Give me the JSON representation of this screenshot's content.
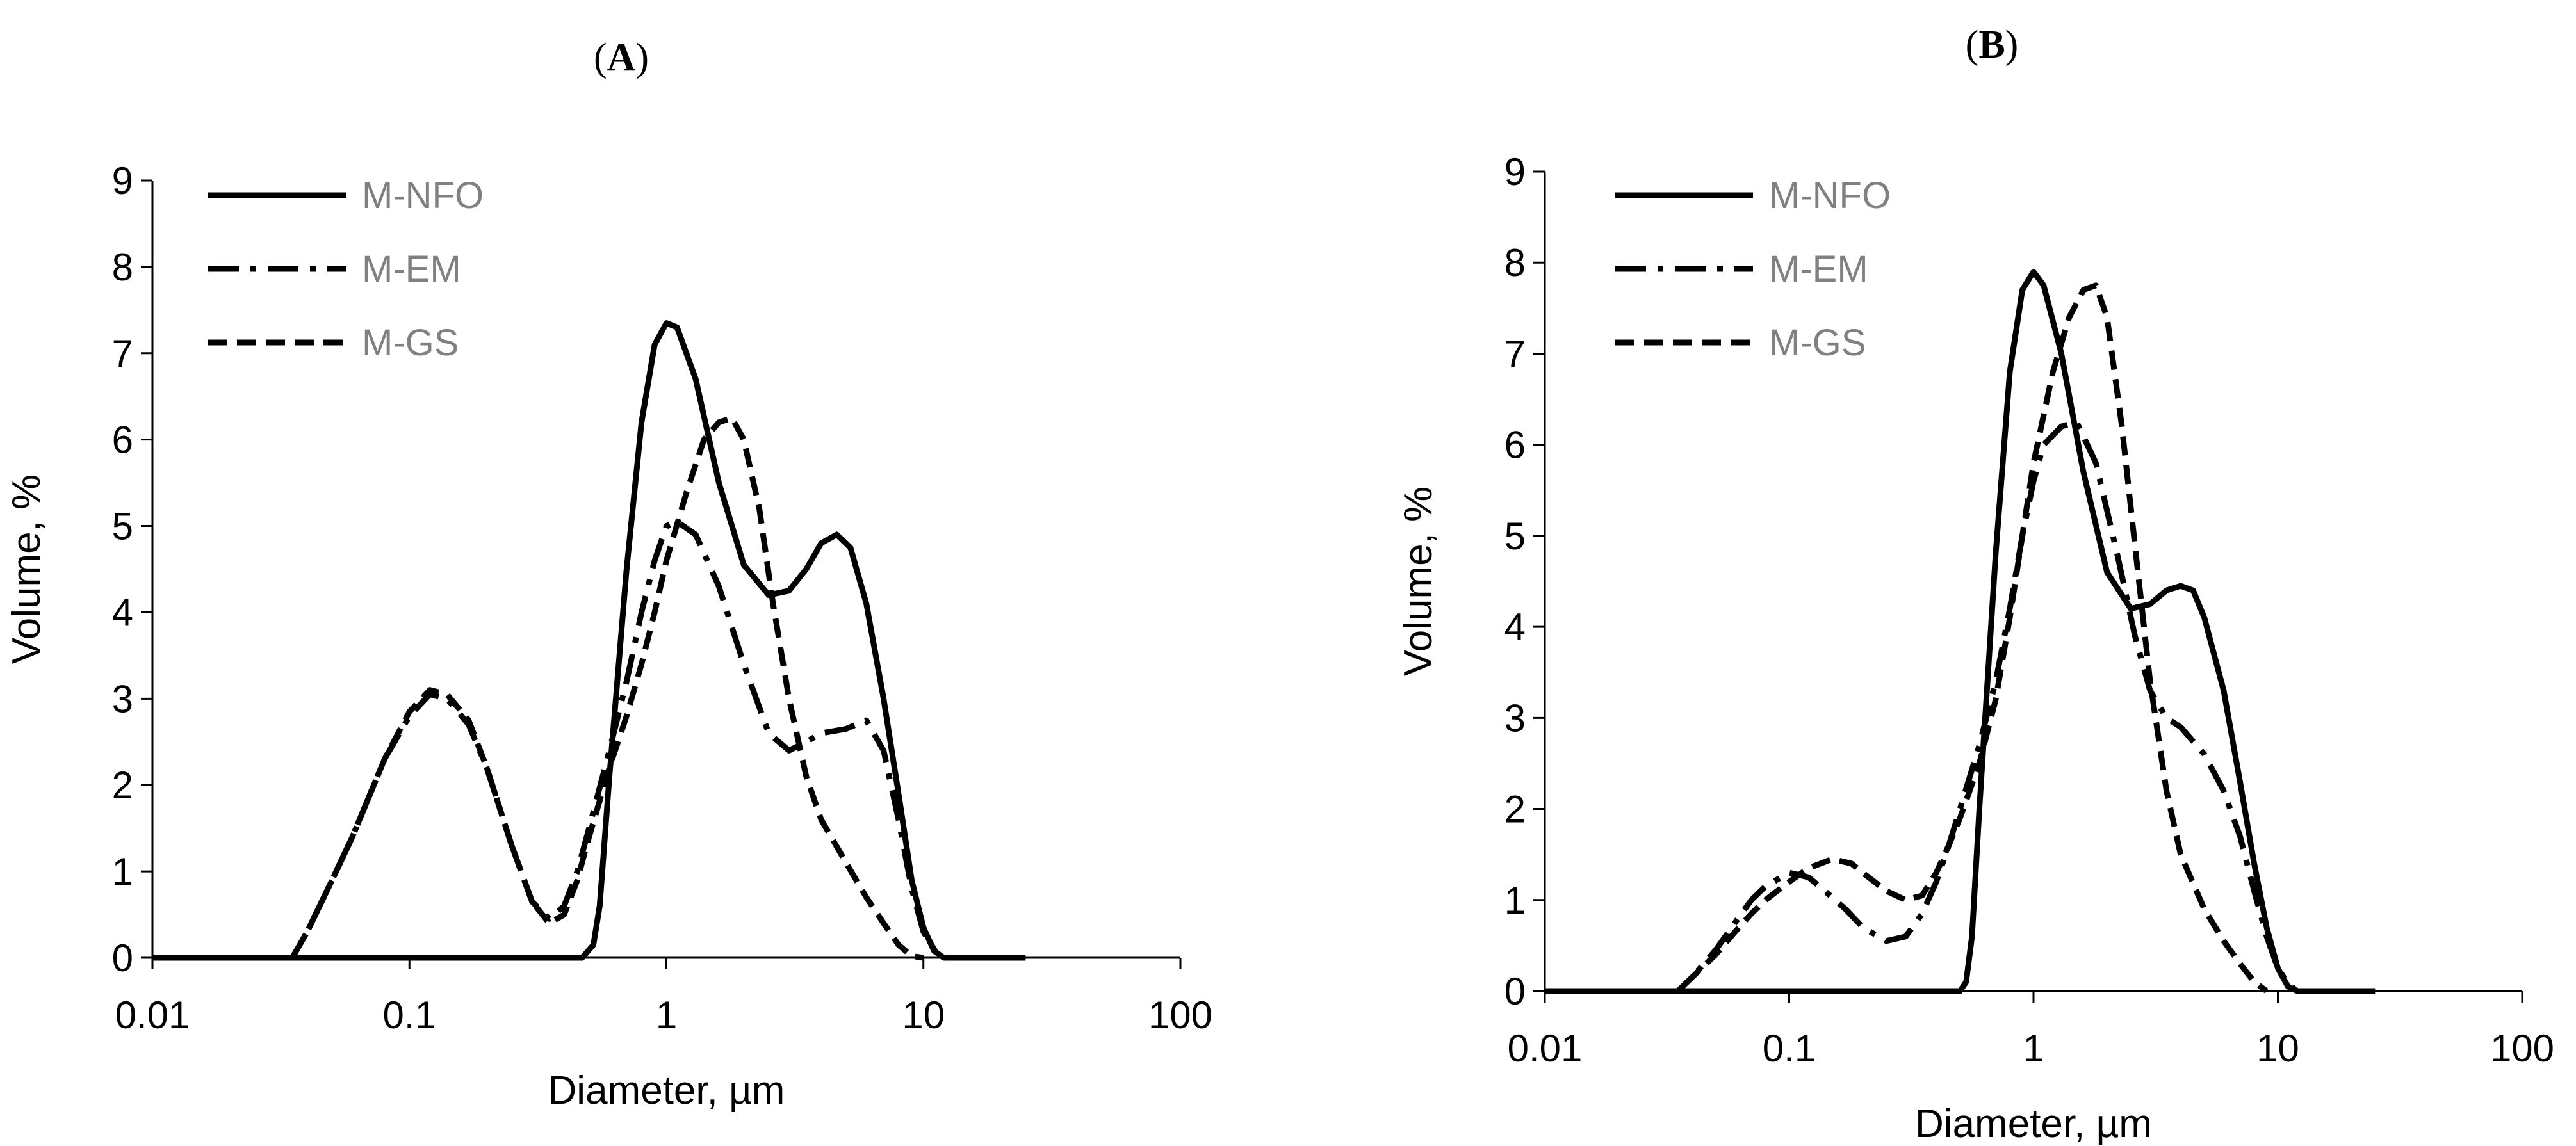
{
  "chart_data": [
    {
      "type": "line",
      "panel": "A",
      "title": "(A)",
      "xlabel": "Diameter, µm",
      "ylabel": "Volume, %",
      "xscale": "log",
      "xlim": [
        0.01,
        100
      ],
      "ylim": [
        0,
        9
      ],
      "xticks": [
        0.01,
        0.1,
        1,
        10,
        100
      ],
      "xtick_labels": [
        "0.01",
        "0.1",
        "1",
        "10",
        "100"
      ],
      "yticks": [
        0,
        1,
        2,
        3,
        4,
        5,
        6,
        7,
        8,
        9
      ],
      "ytick_labels": [
        "0",
        "1",
        "2",
        "3",
        "4",
        "5",
        "6",
        "7",
        "8",
        "9"
      ],
      "legend_position": "top-left",
      "series": [
        {
          "name": "M-NFO",
          "style": "solid",
          "x": [
            0.01,
            0.4,
            0.47,
            0.52,
            0.55,
            0.6,
            0.7,
            0.8,
            0.9,
            1.0,
            1.1,
            1.3,
            1.6,
            2.0,
            2.5,
            3.0,
            3.5,
            4.0,
            4.6,
            5.2,
            6.0,
            7.0,
            8.0,
            9.0,
            10.0,
            11.0,
            12.0,
            13.0,
            25.0
          ],
          "y": [
            0,
            0,
            0.0,
            0.15,
            0.6,
            2.1,
            4.5,
            6.2,
            7.1,
            7.35,
            7.3,
            6.7,
            5.5,
            4.55,
            4.2,
            4.25,
            4.5,
            4.8,
            4.9,
            4.75,
            4.1,
            3.0,
            1.9,
            0.9,
            0.35,
            0.08,
            0.0,
            0.0,
            0.0
          ]
        },
        {
          "name": "M-EM",
          "style": "dash-dot",
          "x": [
            0.01,
            0.035,
            0.04,
            0.05,
            0.06,
            0.08,
            0.1,
            0.12,
            0.14,
            0.17,
            0.2,
            0.25,
            0.3,
            0.35,
            0.4,
            0.45,
            0.5,
            0.6,
            0.7,
            0.8,
            0.9,
            1.0,
            1.1,
            1.3,
            1.6,
            2.0,
            2.5,
            3.0,
            3.5,
            4.0,
            5.0,
            6.0,
            7.0,
            8.0,
            9.0,
            10.0,
            11.0,
            12.0
          ],
          "y": [
            0,
            0,
            0.3,
            0.9,
            1.4,
            2.3,
            2.8,
            3.05,
            3.0,
            2.7,
            2.2,
            1.3,
            0.65,
            0.45,
            0.6,
            1.0,
            1.5,
            2.4,
            3.2,
            4.0,
            4.6,
            5.0,
            5.05,
            4.9,
            4.3,
            3.4,
            2.6,
            2.4,
            2.5,
            2.6,
            2.65,
            2.75,
            2.4,
            1.6,
            0.8,
            0.3,
            0.1,
            0.0
          ]
        },
        {
          "name": "M-GS",
          "style": "dashed",
          "x": [
            0.01,
            0.035,
            0.04,
            0.05,
            0.06,
            0.08,
            0.1,
            0.12,
            0.14,
            0.17,
            0.2,
            0.25,
            0.3,
            0.35,
            0.4,
            0.45,
            0.5,
            0.6,
            0.7,
            0.8,
            0.9,
            1.0,
            1.2,
            1.4,
            1.6,
            1.8,
            2.0,
            2.3,
            2.6,
            3.0,
            3.5,
            4.0,
            5.0,
            6.0,
            7.0,
            8.0,
            9.0,
            10.0
          ],
          "y": [
            0,
            0,
            0.3,
            0.9,
            1.4,
            2.3,
            2.85,
            3.1,
            3.05,
            2.75,
            2.2,
            1.3,
            0.65,
            0.4,
            0.5,
            0.9,
            1.4,
            2.2,
            2.8,
            3.4,
            4.0,
            4.6,
            5.4,
            6.0,
            6.2,
            6.25,
            6.0,
            5.2,
            4.1,
            3.0,
            2.1,
            1.6,
            1.1,
            0.7,
            0.4,
            0.15,
            0.02,
            0.0
          ]
        }
      ]
    },
    {
      "type": "line",
      "panel": "B",
      "title": "(B)",
      "xlabel": "Diameter, µm",
      "ylabel": "Volume, %",
      "xscale": "log",
      "xlim": [
        0.01,
        100
      ],
      "ylim": [
        0,
        9
      ],
      "xticks": [
        0.01,
        0.1,
        1,
        10,
        100
      ],
      "xtick_labels": [
        "0.01",
        "0.1",
        "1",
        "10",
        "100"
      ],
      "yticks": [
        0,
        1,
        2,
        3,
        4,
        5,
        6,
        7,
        8,
        9
      ],
      "ytick_labels": [
        "0",
        "1",
        "2",
        "3",
        "4",
        "5",
        "6",
        "7",
        "8",
        "9"
      ],
      "legend_position": "top-left",
      "series": [
        {
          "name": "M-NFO",
          "style": "solid",
          "x": [
            0.01,
            0.45,
            0.5,
            0.53,
            0.56,
            0.6,
            0.7,
            0.8,
            0.9,
            1.0,
            1.1,
            1.3,
            1.6,
            2.0,
            2.5,
            3.0,
            3.5,
            4.0,
            4.5,
            5.0,
            6.0,
            7.0,
            8.0,
            9.0,
            10.0,
            11.0,
            12.0,
            25.0
          ],
          "y": [
            0,
            0,
            0.0,
            0.1,
            0.6,
            2.0,
            4.8,
            6.8,
            7.7,
            7.9,
            7.75,
            7.0,
            5.7,
            4.6,
            4.2,
            4.25,
            4.4,
            4.45,
            4.4,
            4.1,
            3.3,
            2.3,
            1.4,
            0.7,
            0.25,
            0.05,
            0.0,
            0.0
          ]
        },
        {
          "name": "M-EM",
          "style": "dash-dot",
          "x": [
            0.01,
            0.035,
            0.04,
            0.05,
            0.06,
            0.07,
            0.08,
            0.1,
            0.12,
            0.14,
            0.17,
            0.2,
            0.25,
            0.3,
            0.35,
            0.4,
            0.45,
            0.5,
            0.6,
            0.7,
            0.8,
            0.9,
            1.0,
            1.1,
            1.3,
            1.5,
            1.8,
            2.2,
            2.6,
            3.0,
            3.5,
            4.0,
            5.0,
            6.0,
            7.0,
            8.0,
            9.0,
            10.0,
            11.0,
            12.0
          ],
          "y": [
            0,
            0,
            0.15,
            0.45,
            0.75,
            1.0,
            1.15,
            1.3,
            1.25,
            1.1,
            0.9,
            0.7,
            0.55,
            0.6,
            0.85,
            1.2,
            1.6,
            2.0,
            2.7,
            3.4,
            4.2,
            5.0,
            5.6,
            6.0,
            6.2,
            6.25,
            5.8,
            4.8,
            3.9,
            3.3,
            3.0,
            2.9,
            2.6,
            2.2,
            1.7,
            1.1,
            0.6,
            0.25,
            0.08,
            0.0
          ]
        },
        {
          "name": "M-GS",
          "style": "dashed",
          "x": [
            0.01,
            0.035,
            0.04,
            0.05,
            0.06,
            0.07,
            0.08,
            0.1,
            0.12,
            0.15,
            0.18,
            0.2,
            0.25,
            0.3,
            0.35,
            0.4,
            0.45,
            0.5,
            0.6,
            0.7,
            0.8,
            0.9,
            1.0,
            1.2,
            1.4,
            1.6,
            1.8,
            2.0,
            2.3,
            2.6,
            3.0,
            3.5,
            4.0,
            5.0,
            6.0,
            7.0,
            8.0,
            9.0
          ],
          "y": [
            0,
            0,
            0.15,
            0.4,
            0.65,
            0.85,
            1.0,
            1.2,
            1.35,
            1.45,
            1.4,
            1.3,
            1.1,
            1.0,
            1.05,
            1.3,
            1.6,
            1.9,
            2.5,
            3.2,
            4.1,
            5.0,
            5.8,
            6.8,
            7.4,
            7.7,
            7.75,
            7.4,
            6.2,
            4.9,
            3.4,
            2.2,
            1.5,
            0.9,
            0.55,
            0.3,
            0.1,
            0.0
          ]
        }
      ]
    }
  ]
}
